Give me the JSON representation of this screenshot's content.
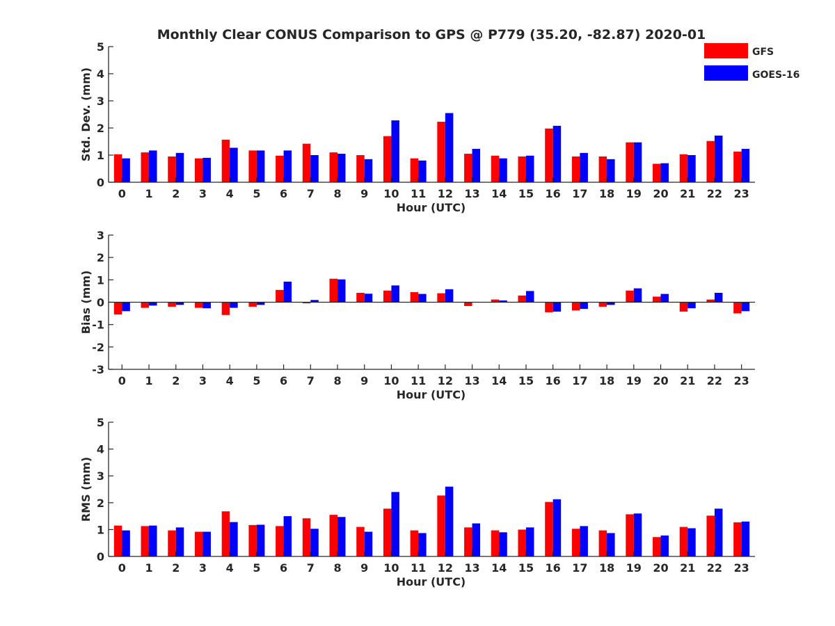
{
  "title": "Monthly Clear CONUS Comparison to GPS @ P779 (35.20, -82.87) 2020-01",
  "legend": {
    "placement": "top-right",
    "entries": [
      {
        "name": "GFS",
        "color": "#ff0000"
      },
      {
        "name": "GOES-16",
        "color": "#0000ff"
      }
    ]
  },
  "chart_data": [
    {
      "type": "bar",
      "xlabel": "Hour (UTC)",
      "ylabel": "Std. Dev. (mm)",
      "ylim": [
        0,
        5
      ],
      "yticks": [
        0,
        1,
        2,
        3,
        4,
        5
      ],
      "grid": false,
      "categories": [
        "0",
        "1",
        "2",
        "3",
        "4",
        "5",
        "6",
        "7",
        "8",
        "9",
        "10",
        "11",
        "12",
        "13",
        "14",
        "15",
        "16",
        "17",
        "18",
        "19",
        "20",
        "21",
        "22",
        "23"
      ],
      "series": [
        {
          "name": "GFS",
          "color": "#ff0000",
          "values": [
            1.03,
            1.1,
            0.95,
            0.88,
            1.57,
            1.17,
            0.98,
            1.42,
            1.1,
            1.0,
            1.7,
            0.88,
            2.23,
            1.05,
            0.98,
            0.95,
            1.98,
            0.95,
            0.95,
            1.47,
            0.68,
            1.03,
            1.52,
            1.13
          ]
        },
        {
          "name": "GOES-16",
          "color": "#0000ff",
          "values": [
            0.88,
            1.17,
            1.08,
            0.9,
            1.27,
            1.17,
            1.17,
            1.0,
            1.05,
            0.85,
            2.28,
            0.8,
            2.55,
            1.23,
            0.88,
            0.98,
            2.08,
            1.08,
            0.85,
            1.47,
            0.7,
            1.0,
            1.72,
            1.23
          ]
        }
      ]
    },
    {
      "type": "bar",
      "xlabel": "Hour (UTC)",
      "ylabel": "Bias (mm)",
      "ylim": [
        -3,
        3
      ],
      "yticks": [
        -3,
        -2,
        -1,
        0,
        1,
        2,
        3
      ],
      "grid": false,
      "categories": [
        "0",
        "1",
        "2",
        "3",
        "4",
        "5",
        "6",
        "7",
        "8",
        "9",
        "10",
        "11",
        "12",
        "13",
        "14",
        "15",
        "16",
        "17",
        "18",
        "19",
        "20",
        "21",
        "22",
        "23"
      ],
      "series": [
        {
          "name": "GFS",
          "color": "#ff0000",
          "values": [
            -0.55,
            -0.25,
            -0.2,
            -0.25,
            -0.57,
            -0.2,
            0.55,
            -0.05,
            1.05,
            0.42,
            0.52,
            0.45,
            0.4,
            -0.17,
            0.12,
            0.3,
            -0.45,
            -0.37,
            -0.2,
            0.52,
            0.25,
            -0.42,
            0.12,
            -0.5
          ]
        },
        {
          "name": "GOES-16",
          "color": "#0000ff",
          "values": [
            -0.4,
            -0.15,
            -0.12,
            -0.27,
            -0.25,
            -0.12,
            0.92,
            0.1,
            1.02,
            0.38,
            0.75,
            0.37,
            0.58,
            0.0,
            0.08,
            0.5,
            -0.42,
            -0.3,
            -0.12,
            0.62,
            0.37,
            -0.27,
            0.42,
            -0.4
          ]
        }
      ]
    },
    {
      "type": "bar",
      "xlabel": "Hour (UTC)",
      "ylabel": "RMS (mm)",
      "ylim": [
        0,
        5
      ],
      "yticks": [
        0,
        1,
        2,
        3,
        4,
        5
      ],
      "grid": false,
      "categories": [
        "0",
        "1",
        "2",
        "3",
        "4",
        "5",
        "6",
        "7",
        "8",
        "9",
        "10",
        "11",
        "12",
        "13",
        "14",
        "15",
        "16",
        "17",
        "18",
        "19",
        "20",
        "21",
        "22",
        "23"
      ],
      "series": [
        {
          "name": "GFS",
          "color": "#ff0000",
          "values": [
            1.15,
            1.13,
            0.97,
            0.92,
            1.68,
            1.17,
            1.13,
            1.42,
            1.55,
            1.1,
            1.78,
            0.97,
            2.27,
            1.08,
            0.97,
            1.0,
            2.03,
            1.03,
            0.97,
            1.57,
            0.72,
            1.1,
            1.52,
            1.27
          ]
        },
        {
          "name": "GOES-16",
          "color": "#0000ff",
          "values": [
            0.97,
            1.15,
            1.08,
            0.92,
            1.28,
            1.18,
            1.5,
            1.03,
            1.47,
            0.92,
            2.4,
            0.87,
            2.6,
            1.23,
            0.9,
            1.08,
            2.13,
            1.13,
            0.87,
            1.6,
            0.78,
            1.05,
            1.78,
            1.3
          ]
        }
      ]
    }
  ]
}
